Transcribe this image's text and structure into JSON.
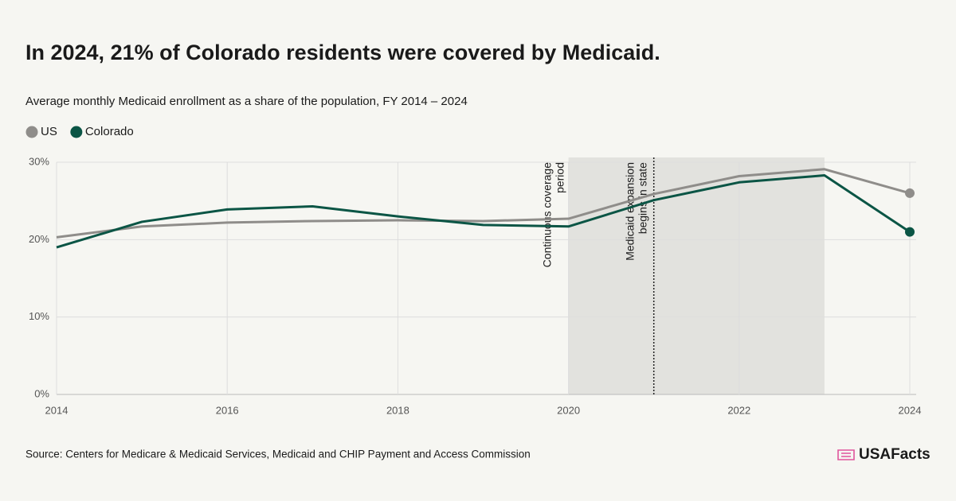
{
  "chart_data": {
    "type": "line",
    "title": "In 2024, 21% of Colorado residents were covered by Medicaid.",
    "subtitle": "Average monthly Medicaid enrollment as a share of the population, FY 2014 – 2024",
    "x": [
      2014,
      2015,
      2016,
      2017,
      2018,
      2019,
      2020,
      2021,
      2022,
      2023,
      2024
    ],
    "series": [
      {
        "name": "US",
        "color": "#8f8d8a",
        "values": [
          20.3,
          21.7,
          22.2,
          22.4,
          22.5,
          22.4,
          22.7,
          25.9,
          28.2,
          29.1,
          26.0
        ]
      },
      {
        "name": "Colorado",
        "color": "#0b5545",
        "values": [
          19.0,
          22.3,
          23.9,
          24.3,
          23.0,
          21.9,
          21.7,
          25.1,
          27.4,
          28.3,
          21.0
        ]
      }
    ],
    "xlim": [
      2014,
      2024
    ],
    "xticks": [
      2014,
      2016,
      2018,
      2020,
      2022,
      2024
    ],
    "ylim": [
      0,
      30
    ],
    "yticks": [
      {
        "value": 0,
        "label": "0%"
      },
      {
        "value": 10,
        "label": "10%"
      },
      {
        "value": 20,
        "label": "20%"
      },
      {
        "value": 30,
        "label": "30%"
      }
    ],
    "grid": true,
    "shaded_region": {
      "x": [
        2020,
        2023
      ],
      "lines": [
        "Continuous coverage",
        "period"
      ]
    },
    "vertical_line": {
      "x": 2021,
      "lines": [
        "Medicaid expansion",
        "begins in state"
      ]
    },
    "source": "Source: Centers for Medicare & Medicaid Services, Medicaid and CHIP Payment and Access Commission",
    "logo": "USAFacts"
  }
}
